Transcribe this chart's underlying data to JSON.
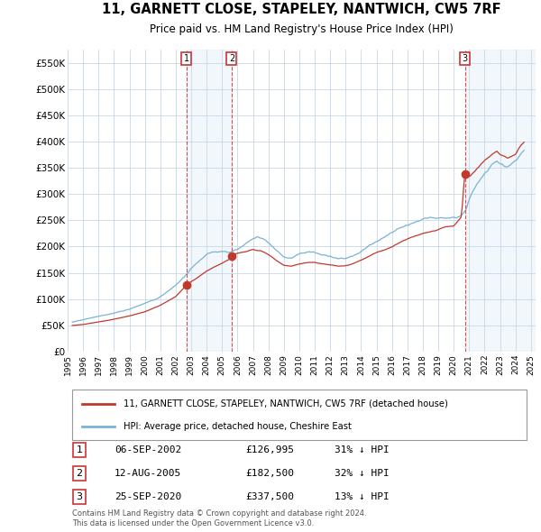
{
  "title": "11, GARNETT CLOSE, STAPELEY, NANTWICH, CW5 7RF",
  "subtitle": "Price paid vs. HM Land Registry's House Price Index (HPI)",
  "background_color": "#ffffff",
  "plot_bg_color": "#ffffff",
  "grid_color": "#c8d8e8",
  "shade_color": "#ddeeff",
  "xlim": [
    1995.3,
    2025.3
  ],
  "ylim": [
    0,
    575000
  ],
  "yticks": [
    0,
    50000,
    100000,
    150000,
    200000,
    250000,
    300000,
    350000,
    400000,
    450000,
    500000,
    550000
  ],
  "ytick_labels": [
    "£0",
    "£50K",
    "£100K",
    "£150K",
    "£200K",
    "£250K",
    "£300K",
    "£350K",
    "£400K",
    "£450K",
    "£500K",
    "£550K"
  ],
  "xtick_years": [
    1995,
    1996,
    1997,
    1998,
    1999,
    2000,
    2001,
    2002,
    2003,
    2004,
    2005,
    2006,
    2007,
    2008,
    2009,
    2010,
    2011,
    2012,
    2013,
    2014,
    2015,
    2016,
    2017,
    2018,
    2019,
    2020,
    2021,
    2022,
    2023,
    2024,
    2025
  ],
  "hpi_color": "#7ab3d4",
  "price_color": "#c0392b",
  "legend_hpi_label": "HPI: Average price, detached house, Cheshire East",
  "legend_price_label": "11, GARNETT CLOSE, STAPELEY, NANTWICH, CW5 7RF (detached house)",
  "sales": [
    {
      "num": 1,
      "date": "06-SEP-2002",
      "price": 126995,
      "year": 2002.69,
      "pct": "31%",
      "dir": "↓"
    },
    {
      "num": 2,
      "date": "12-AUG-2005",
      "price": 182500,
      "year": 2005.62,
      "pct": "32%",
      "dir": "↓"
    },
    {
      "num": 3,
      "date": "25-SEP-2020",
      "price": 337500,
      "year": 2020.73,
      "pct": "13%",
      "dir": "↓"
    }
  ],
  "footer1": "Contains HM Land Registry data © Crown copyright and database right 2024.",
  "footer2": "This data is licensed under the Open Government Licence v3.0."
}
